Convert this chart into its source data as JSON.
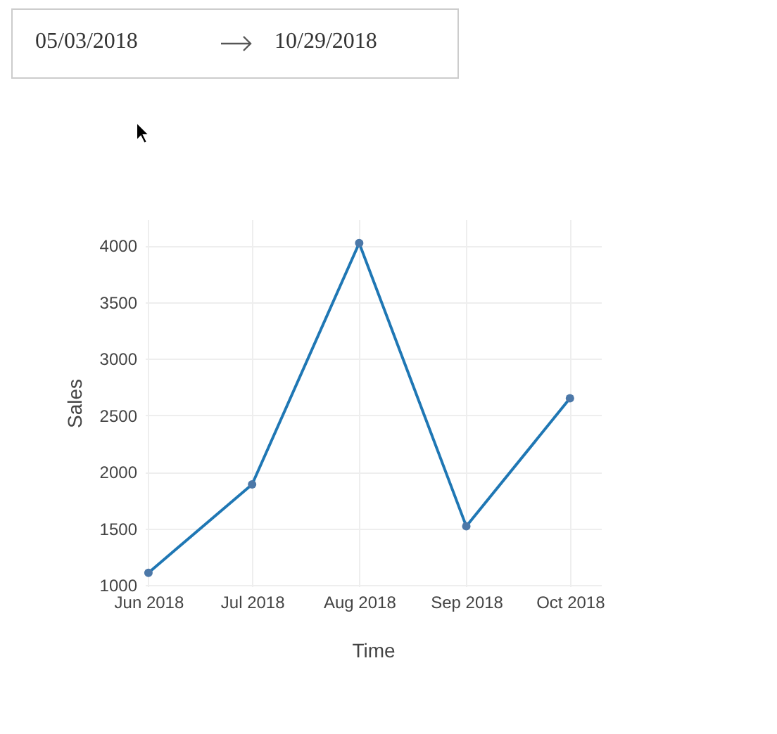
{
  "chart_data": {
    "type": "line",
    "xlabel": "Time",
    "ylabel": "Sales",
    "annotations": [
      "05/03/2018",
      "10/29/2018"
    ],
    "x": [
      "2018-06",
      "2018-07",
      "2018-08",
      "2018-09",
      "2018-10"
    ],
    "series": [
      {
        "color": "#1f77b4",
        "values": [
          1110,
          1890,
          4020,
          1520,
          2650
        ]
      }
    ],
    "xlim": [
      "2018-05-31",
      "2018-10-10"
    ],
    "xticks": [
      {
        "value": "2018-06",
        "label": "Jun 2018"
      },
      {
        "value": "2018-07",
        "label": "Jul 2018"
      },
      {
        "value": "2018-08",
        "label": "Aug 2018"
      },
      {
        "value": "2018-09",
        "label": "Sep 2018"
      },
      {
        "value": "2018-10",
        "label": "Oct 2018"
      }
    ],
    "ylim": [
      990,
      4230
    ],
    "yticks": [
      1000,
      1500,
      2000,
      2500,
      3000,
      3500,
      4000
    ],
    "grid": true,
    "marker": "circle",
    "line_style": "solid"
  }
}
